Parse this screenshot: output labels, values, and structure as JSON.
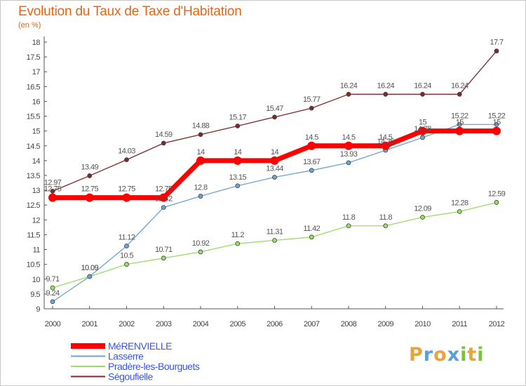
{
  "header": {
    "title": "Evolution du Taux de Taxe d'Habitation",
    "unit": "(en %)"
  },
  "logo": {
    "text": "Proxiti",
    "letters": [
      {
        "ch": "P",
        "color": "#e8a33a"
      },
      {
        "ch": "r",
        "color": "#5aa0d8"
      },
      {
        "ch": "o",
        "color": "#e8a33a"
      },
      {
        "ch": "x",
        "color": "#5aa0d8"
      },
      {
        "ch": "i",
        "color": "#7cc142"
      },
      {
        "ch": "t",
        "color": "#e8a33a"
      },
      {
        "ch": "i",
        "color": "#7cc142"
      }
    ]
  },
  "chart_data": {
    "type": "line",
    "title": "Evolution du Taux de Taxe d'Habitation",
    "ylabel": "(en %)",
    "x": [
      "2000",
      "2001",
      "2002",
      "2003",
      "2004",
      "2005",
      "2006",
      "2007",
      "2008",
      "2009",
      "2010",
      "2011",
      "2012"
    ],
    "ylim": [
      9,
      18
    ],
    "yticks": [
      "9",
      "9.5",
      "10",
      "10.5",
      "11",
      "11.5",
      "12",
      "12.5",
      "13",
      "13.5",
      "14",
      "14.5",
      "15",
      "15.5",
      "16",
      "16.5",
      "17",
      "17.5",
      "18"
    ],
    "grid": false,
    "legend_position": "bottom-left",
    "series": [
      {
        "name": "Ségoufielle",
        "color": "#7a2a2a",
        "values": [
          12.97,
          13.49,
          14.03,
          14.59,
          14.88,
          15.17,
          15.47,
          15.77,
          16.24,
          16.24,
          16.24,
          16.24,
          17.7
        ],
        "labels": [
          "12.97",
          "13.49",
          "14.03",
          "14.59",
          "14.88",
          "15.17",
          "15.47",
          "15.77",
          "16.24",
          "16.24",
          "16.24",
          "16.24",
          "17.7"
        ]
      },
      {
        "name": "Pradère-les-Bourguets",
        "color": "#9bdc68",
        "values": [
          9.71,
          10.09,
          10.5,
          10.71,
          10.92,
          11.2,
          11.31,
          11.42,
          11.8,
          11.8,
          12.09,
          12.28,
          12.59
        ],
        "labels": [
          "9.71",
          "10.09",
          "10.5",
          "10.71",
          "10.92",
          "11.2",
          "11.31",
          "11.42",
          "11.8",
          "11.8",
          "12.09",
          "12.28",
          "12.59"
        ]
      },
      {
        "name": "Lasserre",
        "color": "#6ea3d2",
        "values": [
          9.24,
          10.09,
          11.12,
          12.42,
          12.8,
          13.15,
          13.44,
          13.67,
          13.93,
          14.35,
          14.78,
          15.22,
          15.22
        ],
        "labels": [
          "9.24",
          "10.09",
          "11.12",
          "12.42",
          "12.8",
          "13.15",
          "13.44",
          "13.67",
          "13.93",
          "14.35",
          "14.78",
          "15.22",
          "15.22"
        ]
      },
      {
        "name": "MéRENVIELLE",
        "color": "#ff0000",
        "values": [
          12.75,
          12.75,
          12.75,
          12.75,
          14,
          14,
          14,
          14.5,
          14.5,
          14.5,
          15,
          15,
          15
        ],
        "labels": [
          "12.75",
          "12.75",
          "12.75",
          "12.75",
          "14",
          "14",
          "14",
          "14.5",
          "14.5",
          "14.5",
          "15",
          "15",
          "15"
        ]
      }
    ],
    "legend_order": [
      "MéRENVIELLE",
      "Lasserre",
      "Pradère-les-Bourguets",
      "Ségoufielle"
    ]
  }
}
